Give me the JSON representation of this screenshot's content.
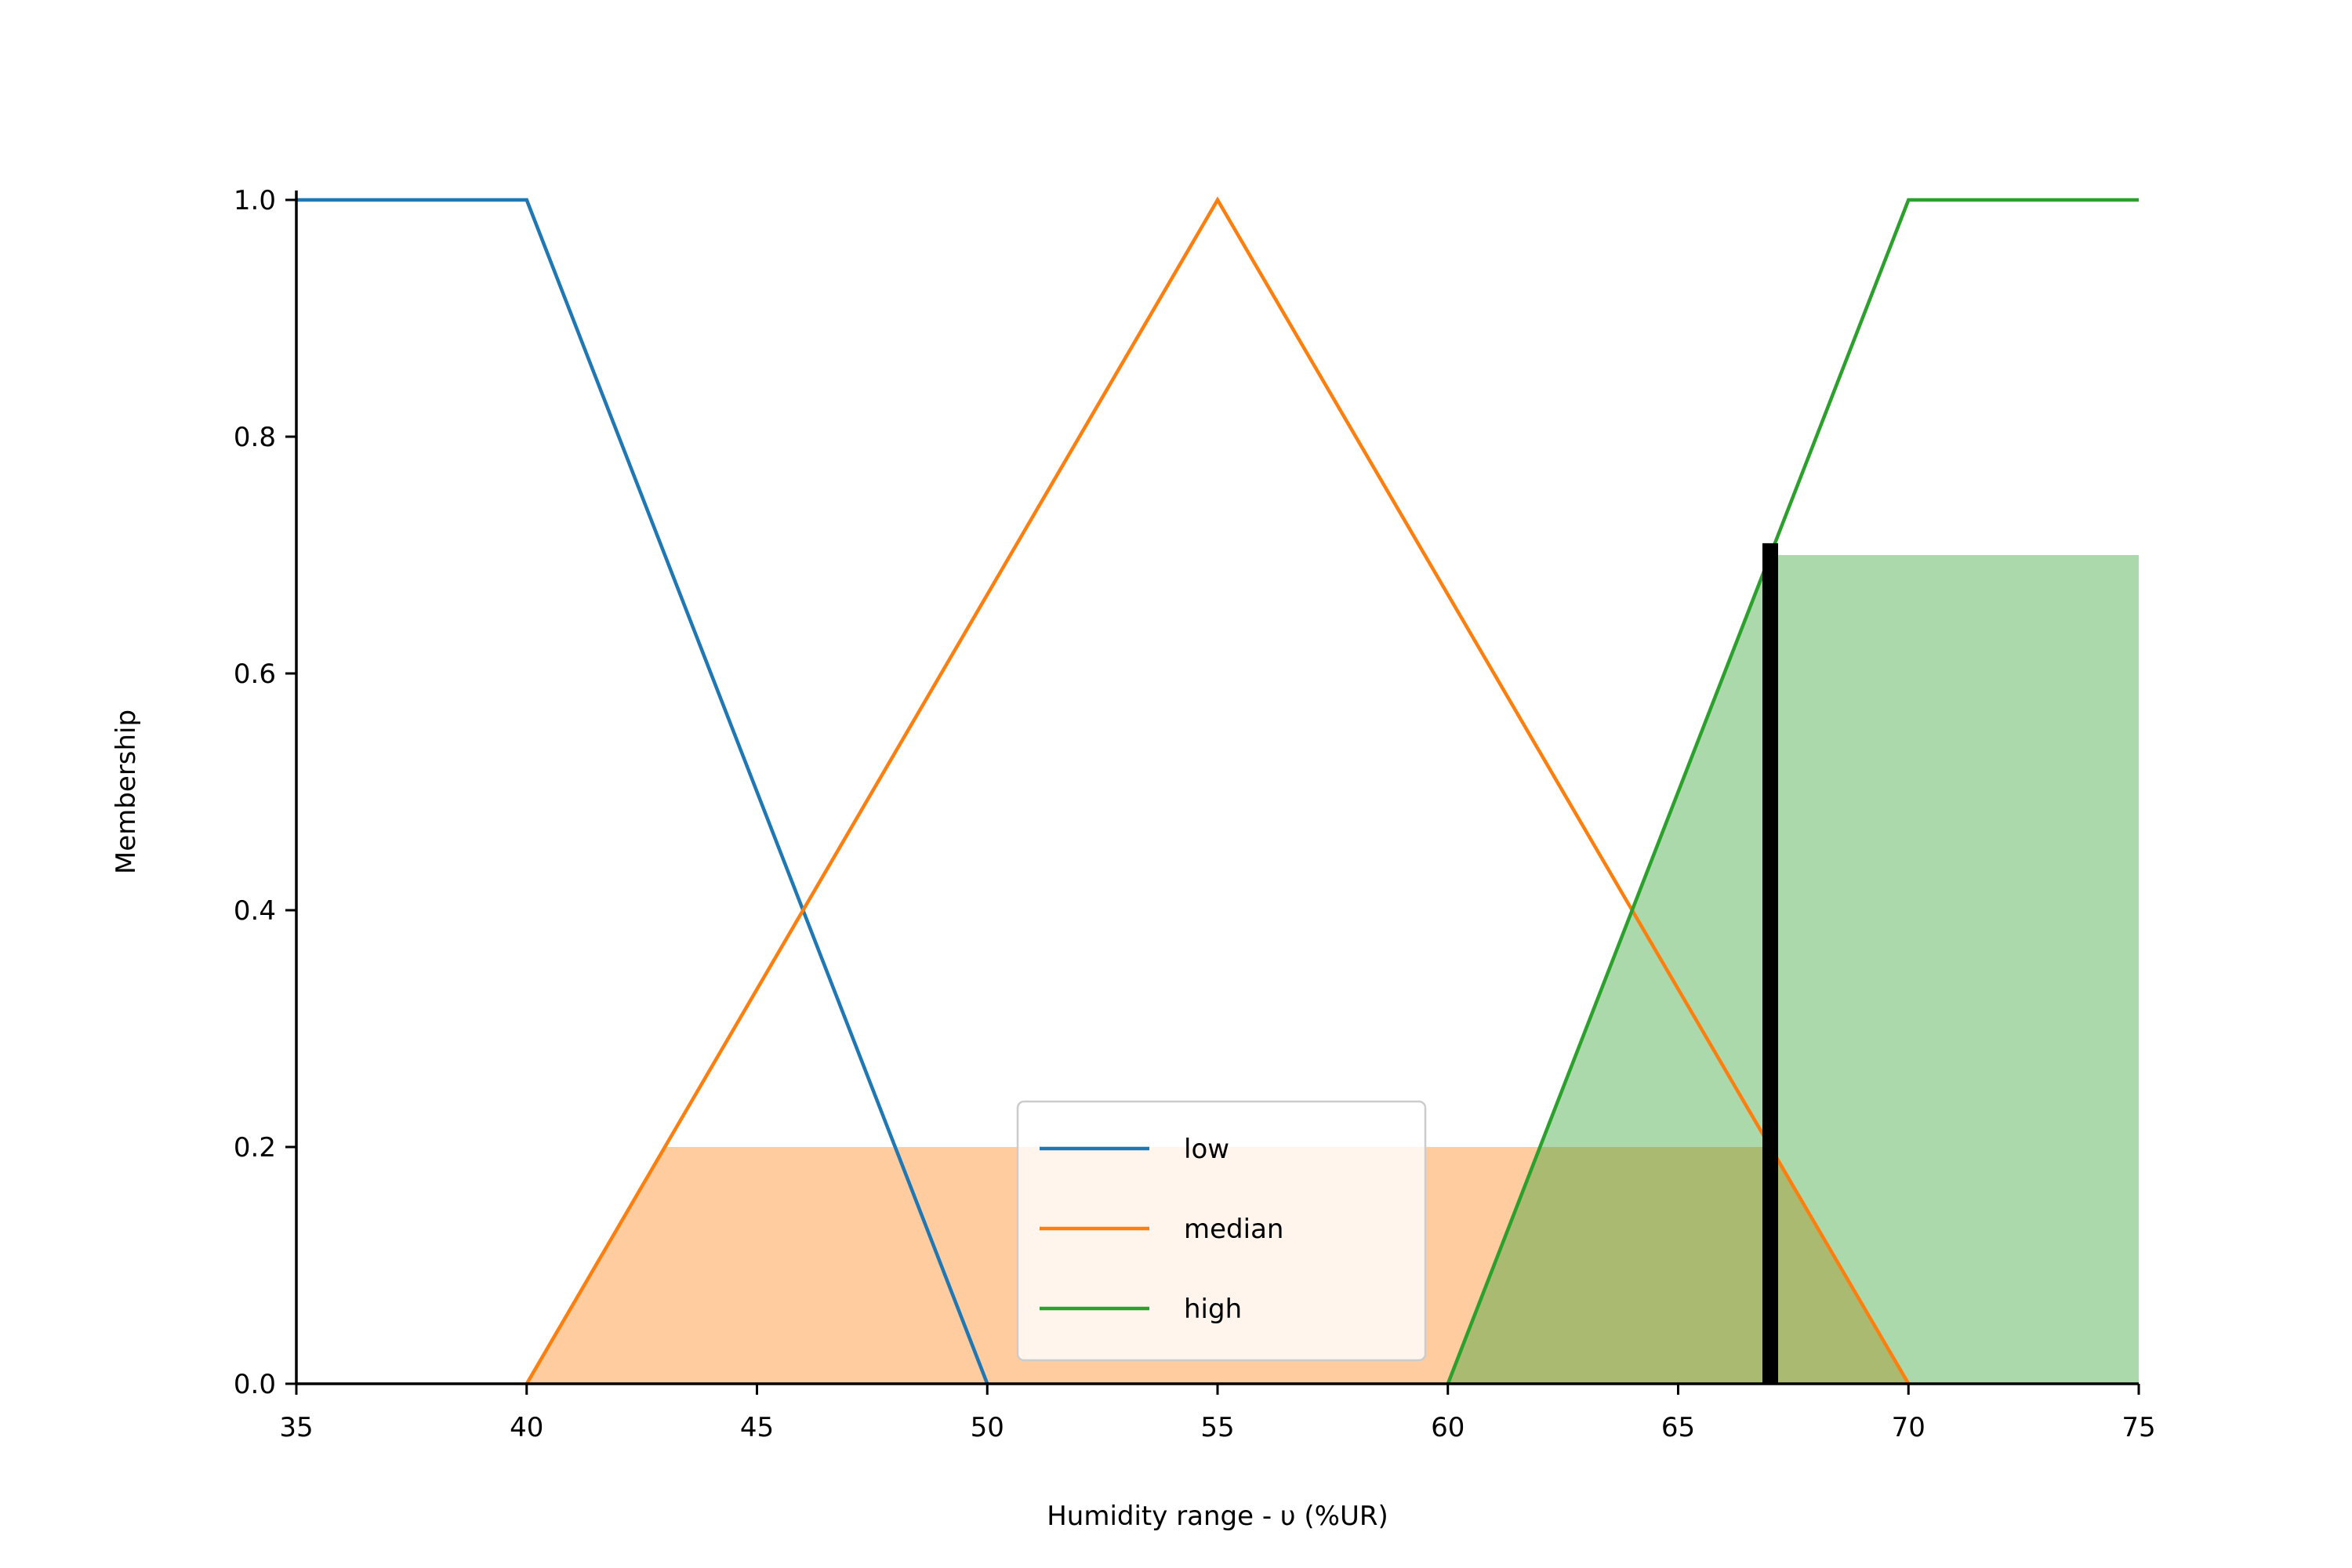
{
  "chart_data": {
    "type": "line",
    "title": "",
    "xlabel": "Humidity range - υ (%UR)",
    "ylabel": "Membership",
    "xlim": [
      35,
      75
    ],
    "ylim": [
      0,
      1
    ],
    "x_ticks": [
      "35",
      "40",
      "45",
      "50",
      "55",
      "60",
      "65",
      "70",
      "75"
    ],
    "y_ticks": [
      "0.0",
      "0.2",
      "0.4",
      "0.6",
      "0.8",
      "1.0"
    ],
    "grid": false,
    "legend_position": "bottom-center",
    "series": [
      {
        "name": "low",
        "color": "#1f77b4",
        "points": [
          [
            35,
            1.0
          ],
          [
            40,
            1.0
          ],
          [
            50,
            0.0
          ]
        ]
      },
      {
        "name": "median",
        "color": "#ff7f0e",
        "points": [
          [
            40,
            0.0
          ],
          [
            55,
            1.0
          ],
          [
            70,
            0.0
          ]
        ]
      },
      {
        "name": "high",
        "color": "#2ca02c",
        "points": [
          [
            60,
            0.0
          ],
          [
            70,
            1.0
          ],
          [
            75,
            1.0
          ]
        ]
      }
    ],
    "activation_areas": [
      {
        "series": "median",
        "color": "#ff7f0e",
        "level": 0.2,
        "points": [
          [
            40,
            0.0
          ],
          [
            43,
            0.2
          ],
          [
            67,
            0.2
          ],
          [
            70,
            0.0
          ]
        ]
      },
      {
        "series": "high",
        "color": "#2ca02c",
        "level": 0.7,
        "points": [
          [
            60,
            0.0
          ],
          [
            67,
            0.7
          ],
          [
            75,
            0.7
          ],
          [
            75,
            0.0
          ]
        ]
      }
    ],
    "marker": {
      "x": 67,
      "y_top": 0.71,
      "color": "#000000"
    }
  }
}
